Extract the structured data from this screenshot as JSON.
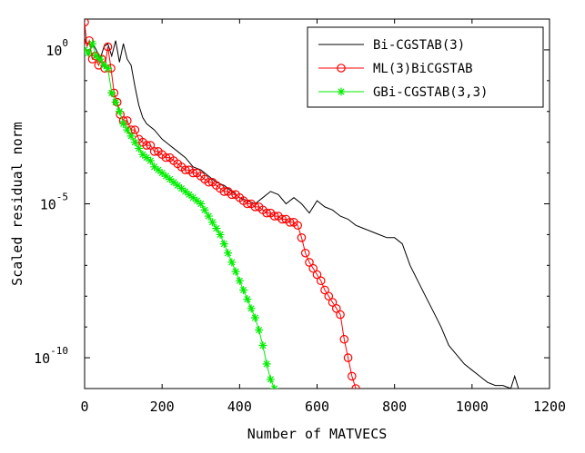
{
  "chart_data": {
    "type": "line",
    "xlabel": "Number of MATVECS",
    "ylabel": "Scaled residual norm",
    "xlim": [
      0,
      1200
    ],
    "ylim_log10": [
      -11,
      1
    ],
    "y_scale": "log",
    "grid": false,
    "legend_position": "top-right",
    "x_ticks": [
      {
        "value": 0,
        "label": "0"
      },
      {
        "value": 200,
        "label": "200"
      },
      {
        "value": 400,
        "label": "400"
      },
      {
        "value": 600,
        "label": "600"
      },
      {
        "value": 800,
        "label": "800"
      },
      {
        "value": 1000,
        "label": "1000"
      },
      {
        "value": 1200,
        "label": "1200"
      }
    ],
    "y_ticks": [
      {
        "log10": 0,
        "base": "10",
        "exp": "0"
      },
      {
        "log10": -5,
        "base": "10",
        "exp": "-5"
      },
      {
        "log10": -10,
        "base": "10",
        "exp": "-10"
      }
    ],
    "series": [
      {
        "name": "Bi-CGSTAB(3)",
        "color": "#000000",
        "marker": "none",
        "x": [
          0,
          10,
          20,
          30,
          40,
          50,
          60,
          70,
          80,
          90,
          100,
          110,
          120,
          130,
          140,
          150,
          160,
          180,
          200,
          220,
          240,
          260,
          280,
          300,
          320,
          340,
          360,
          380,
          400,
          420,
          440,
          460,
          480,
          500,
          520,
          540,
          560,
          580,
          600,
          620,
          640,
          660,
          680,
          700,
          720,
          740,
          760,
          780,
          800,
          820,
          840,
          860,
          880,
          900,
          920,
          940,
          960,
          980,
          1000,
          1020,
          1040,
          1060,
          1080,
          1100,
          1110,
          1120,
          1130
        ],
        "log10_y": [
          0.1,
          -0.2,
          0.2,
          0.0,
          -0.3,
          0.1,
          0.2,
          -0.2,
          0.3,
          -0.4,
          0.2,
          -0.3,
          -0.5,
          -1.2,
          -1.8,
          -2.2,
          -2.4,
          -2.6,
          -2.9,
          -3.1,
          -3.3,
          -3.5,
          -3.8,
          -3.9,
          -4.1,
          -4.3,
          -4.4,
          -4.6,
          -4.8,
          -4.9,
          -5.0,
          -4.8,
          -4.6,
          -4.7,
          -5.0,
          -4.8,
          -5.0,
          -5.3,
          -4.9,
          -5.1,
          -5.2,
          -5.4,
          -5.5,
          -5.7,
          -5.8,
          -5.9,
          -6.0,
          -6.1,
          -6.1,
          -6.3,
          -7.0,
          -7.5,
          -8.0,
          -8.5,
          -9.0,
          -9.6,
          -9.9,
          -10.2,
          -10.4,
          -10.6,
          -10.8,
          -10.9,
          -10.9,
          -11.0,
          -10.6,
          -11.0,
          -11.2
        ]
      },
      {
        "name": "ML(3)BiCGSTAB",
        "color": "#ff0000",
        "marker": "circle",
        "x": [
          0,
          6,
          12,
          20,
          28,
          36,
          44,
          52,
          60,
          68,
          76,
          84,
          92,
          100,
          110,
          120,
          130,
          140,
          150,
          160,
          170,
          180,
          190,
          200,
          210,
          220,
          230,
          240,
          250,
          260,
          270,
          280,
          290,
          300,
          310,
          320,
          330,
          340,
          350,
          360,
          370,
          380,
          390,
          400,
          410,
          420,
          430,
          440,
          450,
          460,
          470,
          480,
          490,
          500,
          510,
          520,
          530,
          540,
          550,
          560,
          570,
          580,
          590,
          600,
          610,
          620,
          630,
          640,
          650,
          660,
          670,
          680,
          690,
          700
        ],
        "log10_y": [
          0.9,
          0.1,
          0.3,
          -0.3,
          -0.2,
          -0.5,
          -0.3,
          -0.6,
          0.1,
          -0.6,
          -1.4,
          -1.7,
          -2.1,
          -2.3,
          -2.3,
          -2.6,
          -2.6,
          -2.9,
          -3.0,
          -3.1,
          -3.1,
          -3.3,
          -3.3,
          -3.4,
          -3.5,
          -3.5,
          -3.6,
          -3.7,
          -3.8,
          -3.9,
          -3.9,
          -4.0,
          -4.0,
          -4.1,
          -4.2,
          -4.3,
          -4.3,
          -4.4,
          -4.5,
          -4.6,
          -4.6,
          -4.7,
          -4.7,
          -4.8,
          -4.9,
          -5.0,
          -5.0,
          -5.1,
          -5.1,
          -5.2,
          -5.3,
          -5.3,
          -5.4,
          -5.4,
          -5.5,
          -5.5,
          -5.6,
          -5.6,
          -5.7,
          -6.1,
          -6.6,
          -6.9,
          -7.1,
          -7.3,
          -7.5,
          -7.8,
          -8.0,
          -8.2,
          -8.4,
          -8.6,
          -9.4,
          -10.0,
          -10.6,
          -11.0
        ]
      },
      {
        "name": "GBi-CGSTAB(3,3)",
        "color": "#00ee00",
        "marker": "star",
        "x": [
          0,
          10,
          20,
          30,
          40,
          50,
          60,
          70,
          80,
          90,
          100,
          110,
          120,
          130,
          140,
          150,
          160,
          170,
          180,
          190,
          200,
          210,
          220,
          230,
          240,
          250,
          260,
          270,
          280,
          290,
          300,
          310,
          320,
          330,
          340,
          350,
          360,
          370,
          380,
          390,
          400,
          410,
          420,
          430,
          440,
          450,
          460,
          470,
          480,
          490
        ],
        "log10_y": [
          0.0,
          -0.1,
          0.2,
          -0.2,
          -0.3,
          -0.5,
          -0.6,
          -1.4,
          -1.7,
          -2.0,
          -2.4,
          -2.6,
          -2.8,
          -3.0,
          -3.2,
          -3.4,
          -3.5,
          -3.6,
          -3.8,
          -3.9,
          -4.0,
          -4.1,
          -4.2,
          -4.3,
          -4.4,
          -4.5,
          -4.6,
          -4.7,
          -4.8,
          -4.9,
          -5.0,
          -5.2,
          -5.4,
          -5.6,
          -5.8,
          -6.0,
          -6.3,
          -6.6,
          -6.9,
          -7.2,
          -7.5,
          -7.8,
          -8.1,
          -8.4,
          -8.7,
          -9.1,
          -9.6,
          -10.2,
          -10.7,
          -11.0
        ]
      }
    ]
  }
}
